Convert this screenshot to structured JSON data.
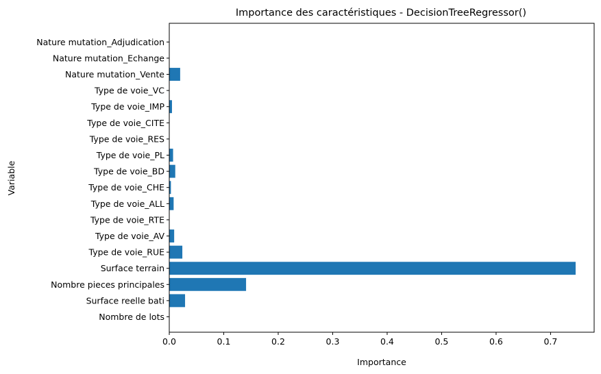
{
  "chart_data": {
    "type": "bar",
    "orientation": "horizontal",
    "title": "Importance des caractéristiques - DecisionTreeRegressor()",
    "xlabel": "Importance",
    "ylabel": "Variable",
    "xlim": [
      0,
      0.78
    ],
    "xticks": [
      "0.0",
      "0.1",
      "0.2",
      "0.3",
      "0.4",
      "0.5",
      "0.6",
      "0.7"
    ],
    "xtick_values": [
      0,
      0.1,
      0.2,
      0.3,
      0.4,
      0.5,
      0.6,
      0.7
    ],
    "grid": false,
    "bar_color": "#1f77b4",
    "categories": [
      "Nombre de lots",
      "Surface reelle bati",
      "Nombre pieces principales",
      "Surface terrain",
      "Type de voie_RUE",
      "Type de voie_AV",
      "Type de voie_RTE",
      "Type de voie_ALL",
      "Type de voie_CHE",
      "Type de voie_BD",
      "Type de voie_PL",
      "Type de voie_RES",
      "Type de voie_CITE",
      "Type de voie_IMP",
      "Type de voie_VC",
      "Nature mutation_Vente",
      "Nature mutation_Echange",
      "Nature mutation_Adjudication"
    ],
    "values": [
      0.0,
      0.029,
      0.141,
      0.746,
      0.024,
      0.009,
      0.0,
      0.008,
      0.003,
      0.011,
      0.007,
      0.0,
      0.0,
      0.005,
      0.0,
      0.02,
      0.0,
      0.0
    ]
  }
}
